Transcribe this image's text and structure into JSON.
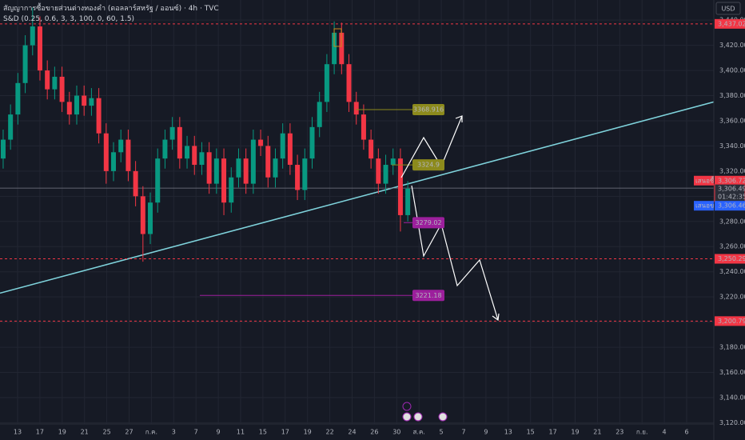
{
  "chart_data": {
    "type": "candlestick",
    "title": "สัญญาการซื้อขายส่วนต่างทองคำ (ดอลลาร์สหรัฐ / ออนซ์) · 4h · TVC",
    "subtitle": "S&D (0.25, 0.6, 3, 3, 100, 0, 60, 1.5)",
    "currency": "USD",
    "x_labels": [
      "13",
      "17",
      "19",
      "21",
      "25",
      "27",
      "ก.ค.",
      "3",
      "7",
      "9",
      "11",
      "15",
      "17",
      "19",
      "22",
      "24",
      "26",
      "30",
      "ส.ค.",
      "5",
      "7",
      "9",
      "13",
      "15",
      "17",
      "19",
      "21",
      "23",
      "ก.ย.",
      "4",
      "6"
    ],
    "xlim": [
      -0.43,
      96.6
    ],
    "ylim": [
      3119,
      3456
    ],
    "yticks": [
      {
        "value": 3120,
        "label": "3,120.000"
      },
      {
        "value": 3140,
        "label": "3,140.000"
      },
      {
        "value": 3160,
        "label": "3,160.000"
      },
      {
        "value": 3180,
        "label": "3,180.000"
      },
      {
        "value": 3200,
        "label": "3,200.000"
      },
      {
        "value": 3220,
        "label": "3,220.000"
      },
      {
        "value": 3240,
        "label": "3,240.000"
      },
      {
        "value": 3260,
        "label": "3,260.000"
      },
      {
        "value": 3280,
        "label": "3,280.000"
      },
      {
        "value": 3300,
        "label": "3,300.000"
      },
      {
        "value": 3320,
        "label": "3,320.000"
      },
      {
        "value": 3340,
        "label": "3,340.000"
      },
      {
        "value": 3360,
        "label": "3,360.000"
      },
      {
        "value": 3380,
        "label": "3,380.000"
      },
      {
        "value": 3400,
        "label": "3,400.000"
      },
      {
        "value": 3420,
        "label": "3,420.000"
      },
      {
        "value": 3440,
        "label": "3,440.000"
      }
    ],
    "grid": true,
    "up_color": "#089981",
    "down_color": "#f23645",
    "open": [
      3330,
      3345,
      3365,
      3390,
      3420,
      3435,
      3400,
      3385,
      3395,
      3375,
      3365,
      3380,
      3372,
      3378,
      3350,
      3320,
      3335,
      3345,
      3320,
      3300,
      3270,
      3295,
      3330,
      3345,
      3355,
      3330,
      3340,
      3325,
      3335,
      3310,
      3330,
      3295,
      3315,
      3330,
      3310,
      3345,
      3340,
      3315,
      3330,
      3350,
      3325,
      3305,
      3330,
      3355,
      3375,
      3405,
      3430,
      3405,
      3375,
      3365,
      3345,
      3330,
      3310,
      3325,
      3330,
      3285
    ],
    "high": [
      3353,
      3373,
      3398,
      3428,
      3450,
      3443,
      3408,
      3403,
      3403,
      3383,
      3388,
      3388,
      3386,
      3386,
      3358,
      3343,
      3353,
      3353,
      3328,
      3308,
      3303,
      3338,
      3353,
      3363,
      3363,
      3348,
      3348,
      3343,
      3343,
      3338,
      3338,
      3323,
      3338,
      3338,
      3353,
      3353,
      3348,
      3338,
      3358,
      3358,
      3333,
      3338,
      3363,
      3383,
      3413,
      3439,
      3438,
      3413,
      3383,
      3373,
      3353,
      3338,
      3333,
      3338,
      3338,
      3312
    ],
    "low": [
      3322,
      3337,
      3357,
      3382,
      3412,
      3392,
      3377,
      3377,
      3367,
      3357,
      3357,
      3364,
      3364,
      3342,
      3310,
      3312,
      3327,
      3312,
      3292,
      3248,
      3262,
      3287,
      3322,
      3337,
      3322,
      3322,
      3317,
      3317,
      3302,
      3302,
      3285,
      3287,
      3307,
      3302,
      3302,
      3332,
      3307,
      3307,
      3322,
      3317,
      3297,
      3297,
      3322,
      3347,
      3367,
      3397,
      3397,
      3367,
      3357,
      3337,
      3322,
      3302,
      3302,
      3317,
      3272,
      3280
    ],
    "close": [
      3345,
      3365,
      3390,
      3420,
      3435,
      3400,
      3385,
      3395,
      3375,
      3365,
      3380,
      3372,
      3378,
      3350,
      3320,
      3335,
      3345,
      3320,
      3300,
      3270,
      3295,
      3330,
      3345,
      3355,
      3330,
      3340,
      3325,
      3335,
      3310,
      3330,
      3295,
      3315,
      3330,
      3310,
      3345,
      3340,
      3315,
      3330,
      3350,
      3325,
      3305,
      3330,
      3355,
      3375,
      3405,
      3430,
      3405,
      3375,
      3365,
      3345,
      3330,
      3310,
      3325,
      3330,
      3285,
      3306
    ],
    "trend_line": {
      "x": [
        -0.43,
        96.6
      ],
      "y": [
        3223,
        3375
      ],
      "color": "#7fd3dc"
    },
    "levels": [
      {
        "value": 3437.026,
        "label": "3,437.026"
      },
      {
        "value": 3250.29,
        "label": "3,250.290"
      },
      {
        "value": 3200.799,
        "label": "3,200.799"
      }
    ],
    "level_color": "#f23645",
    "last_price": {
      "value": 3306.49,
      "label": "3,306.490",
      "countdown": "01:42:35"
    },
    "bid": {
      "value": 3306.72,
      "label": "3,306.720",
      "name": "เสนอซื้อ",
      "color": "#f23645"
    },
    "ask": {
      "value": 3306.46,
      "label": "3,306.460",
      "name": "เสนอขาย",
      "color": "#2962ff"
    },
    "annotations": [
      {
        "value": 3368.916,
        "color": "#8c8a1c"
      },
      {
        "value": 3324.9,
        "color": "#8c8a1c"
      },
      {
        "value": 3279.02,
        "color": "#9c1f9c"
      },
      {
        "value": 3221.18,
        "color": "#9c1f9c"
      }
    ]
  }
}
